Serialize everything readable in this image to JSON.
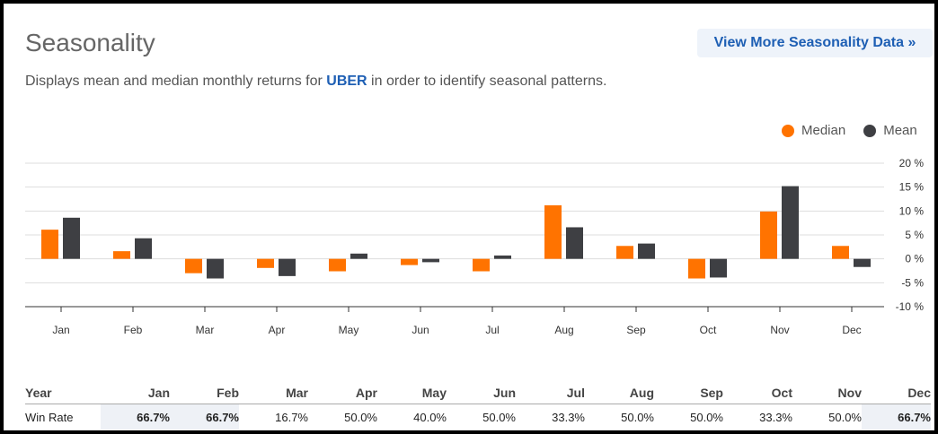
{
  "header": {
    "title": "Seasonality",
    "subtitle_pre": "Displays mean and median monthly returns for ",
    "ticker": "UBER",
    "subtitle_post": " in order to identify seasonal patterns.",
    "more_label": "View More Seasonality Data »"
  },
  "legend": {
    "median_label": "Median",
    "mean_label": "Mean"
  },
  "colors": {
    "median": "#ff7300",
    "mean": "#3e3f43",
    "accent": "#1e5fb4"
  },
  "chart_data": {
    "type": "bar",
    "categories": [
      "Jan",
      "Feb",
      "Mar",
      "Apr",
      "May",
      "Jun",
      "Jul",
      "Aug",
      "Sep",
      "Oct",
      "Nov",
      "Dec"
    ],
    "series": [
      {
        "name": "Median",
        "values": [
          6.1,
          1.6,
          -3.0,
          -1.9,
          -2.6,
          -1.3,
          -2.6,
          11.2,
          2.7,
          -4.1,
          9.9,
          2.7
        ]
      },
      {
        "name": "Mean",
        "values": [
          8.6,
          4.3,
          -4.1,
          -3.6,
          1.1,
          -0.7,
          0.7,
          6.6,
          3.2,
          -3.9,
          15.2,
          -1.7
        ]
      }
    ],
    "ylim": [
      -10,
      20
    ],
    "yticks": [
      "20 %",
      "15 %",
      "10 %",
      "5 %",
      "0 %",
      "-5 %",
      "-10 %"
    ],
    "grid": true,
    "legend_position": "top-right"
  },
  "win_rate": {
    "headers": [
      "Year",
      "Jan",
      "Feb",
      "Mar",
      "Apr",
      "May",
      "Jun",
      "Jul",
      "Aug",
      "Sep",
      "Oct",
      "Nov",
      "Dec"
    ],
    "row_label": "Win Rate",
    "values": [
      "66.7%",
      "66.7%",
      "16.7%",
      "50.0%",
      "40.0%",
      "50.0%",
      "33.3%",
      "50.0%",
      "50.0%",
      "33.3%",
      "50.0%",
      "66.7%"
    ]
  }
}
